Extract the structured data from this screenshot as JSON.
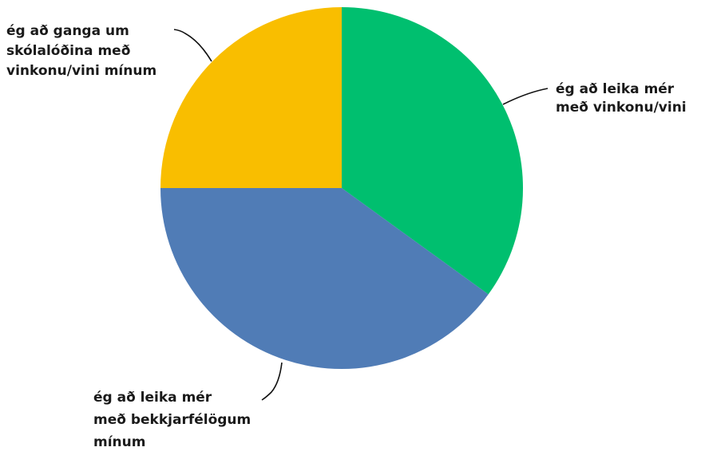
{
  "chart_data": {
    "type": "pie",
    "slices": [
      {
        "label": "ég að leika mér með vinkonu/vini",
        "value": 35,
        "color": "#00BF6F"
      },
      {
        "label": "ég að leika mér með bekkjarfélögum mínum",
        "value": 40,
        "color": "#507CB6"
      },
      {
        "label": "ég að ganga um skólalóðina með vinkonu/vini mínum",
        "value": 25,
        "color": "#F9BE00"
      }
    ],
    "label_lines": [
      [
        "ég að leika mér",
        "með vinkonu/vini"
      ],
      [
        "ég að leika mér",
        "með bekkjarfélögum",
        "mínum"
      ],
      [
        "ég að ganga um",
        "skólalóðina með",
        "vinkonu/vini mínum"
      ]
    ]
  }
}
